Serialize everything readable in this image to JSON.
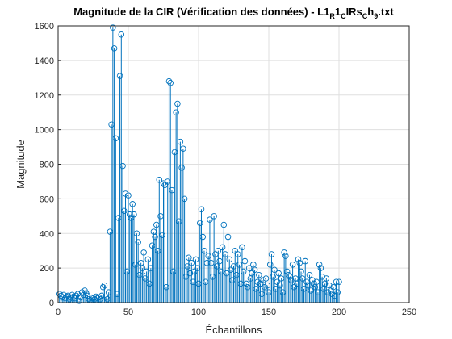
{
  "chart_data": {
    "type": "stem",
    "title": [
      {
        "text": "Magnitude de la CIR (Vérification des données) - L1"
      },
      {
        "text": "R",
        "sub": true
      },
      {
        "text": "1"
      },
      {
        "text": "C",
        "sub": true
      },
      {
        "text": "IRs"
      },
      {
        "text": "C",
        "sub": true
      },
      {
        "text": "h"
      },
      {
        "text": "9",
        "sub": true
      },
      {
        "text": ".txt"
      }
    ],
    "xlabel": "Échantillons",
    "ylabel": "Magnitude",
    "color": "#0072bd",
    "grid": true,
    "xlim": [
      0,
      250
    ],
    "xticks": [
      0,
      50,
      100,
      150,
      200,
      250
    ],
    "ylim": [
      0,
      1600
    ],
    "yticks": [
      0,
      200,
      400,
      600,
      800,
      1000,
      1200,
      1400,
      1600
    ],
    "x": [
      1,
      2,
      3,
      4,
      5,
      6,
      7,
      8,
      9,
      10,
      11,
      12,
      13,
      14,
      15,
      16,
      17,
      18,
      19,
      20,
      21,
      22,
      23,
      24,
      25,
      26,
      27,
      28,
      29,
      30,
      31,
      32,
      33,
      34,
      35,
      36,
      37,
      38,
      39,
      40,
      41,
      42,
      43,
      44,
      45,
      46,
      47,
      48,
      49,
      50,
      51,
      52,
      53,
      54,
      55,
      56,
      57,
      58,
      59,
      60,
      61,
      62,
      63,
      64,
      65,
      66,
      67,
      68,
      69,
      70,
      71,
      72,
      73,
      74,
      75,
      76,
      77,
      78,
      79,
      80,
      81,
      82,
      83,
      84,
      85,
      86,
      87,
      88,
      89,
      90,
      91,
      92,
      93,
      94,
      95,
      96,
      97,
      98,
      99,
      100,
      101,
      102,
      103,
      104,
      105,
      106,
      107,
      108,
      109,
      110,
      111,
      112,
      113,
      114,
      115,
      116,
      117,
      118,
      119,
      120,
      121,
      122,
      123,
      124,
      125,
      126,
      127,
      128,
      129,
      130,
      131,
      132,
      133,
      134,
      135,
      136,
      137,
      138,
      139,
      140,
      141,
      142,
      143,
      144,
      145,
      146,
      147,
      148,
      149,
      150,
      151,
      152,
      153,
      154,
      155,
      156,
      157,
      158,
      159,
      160,
      161,
      162,
      163,
      164,
      165,
      166,
      167,
      168,
      169,
      170,
      171,
      172,
      173,
      174,
      175,
      176,
      177,
      178,
      179,
      180,
      181,
      182,
      183,
      184,
      185,
      186,
      187,
      188,
      189,
      190,
      191,
      192,
      193,
      194,
      195,
      196,
      197,
      198,
      199,
      200
    ],
    "values": [
      50,
      40,
      30,
      45,
      25,
      35,
      40,
      20,
      30,
      45,
      35,
      25,
      40,
      50,
      10,
      30,
      60,
      45,
      70,
      55,
      40,
      20,
      15,
      30,
      25,
      20,
      35,
      25,
      30,
      20,
      40,
      90,
      100,
      30,
      20,
      60,
      410,
      1030,
      1590,
      1470,
      950,
      50,
      490,
      1310,
      1550,
      790,
      530,
      630,
      180,
      620,
      510,
      490,
      570,
      510,
      220,
      400,
      350,
      160,
      230,
      200,
      290,
      140,
      180,
      250,
      110,
      200,
      330,
      410,
      380,
      450,
      300,
      710,
      500,
      390,
      690,
      680,
      90,
      700,
      1280,
      1270,
      650,
      180,
      870,
      1100,
      1150,
      470,
      930,
      780,
      890,
      600,
      150,
      210,
      260,
      170,
      230,
      120,
      180,
      250,
      200,
      110,
      460,
      540,
      380,
      300,
      120,
      230,
      270,
      480,
      230,
      150,
      500,
      280,
      210,
      300,
      240,
      180,
      320,
      450,
      280,
      170,
      380,
      250,
      190,
      130,
      210,
      300,
      160,
      280,
      220,
      110,
      320,
      180,
      240,
      110,
      90,
      200,
      140,
      170,
      220,
      190,
      80,
      120,
      160,
      110,
      50,
      130,
      90,
      140,
      100,
      60,
      220,
      280,
      150,
      190,
      80,
      120,
      170,
      100,
      140,
      60,
      290,
      270,
      180,
      160,
      150,
      130,
      220,
      90,
      140,
      110,
      250,
      230,
      180,
      140,
      80,
      240,
      120,
      100,
      160,
      70,
      130,
      110,
      90,
      120,
      60,
      220,
      200,
      150,
      80,
      110,
      140,
      60,
      100,
      70,
      50,
      90,
      40,
      120,
      60,
      120
    ]
  }
}
